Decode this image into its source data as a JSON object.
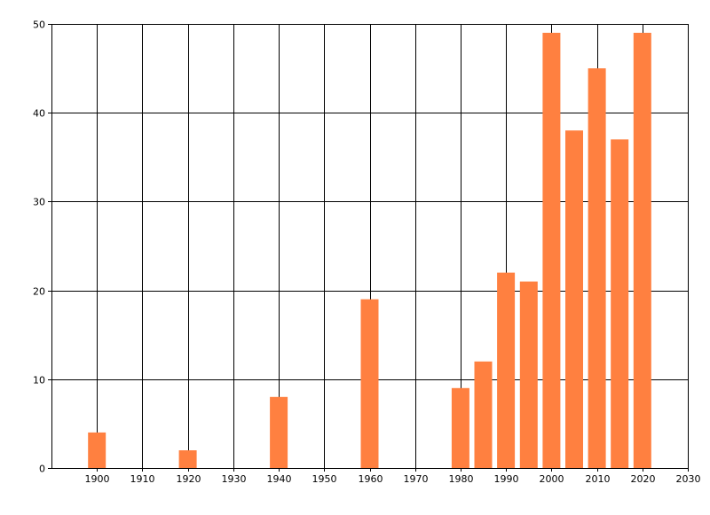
{
  "chart_data": {
    "type": "bar",
    "title": "",
    "xlabel": "",
    "ylabel": "",
    "x": [
      1900,
      1920,
      1940,
      1960,
      1980,
      1985,
      1990,
      1995,
      2000,
      2005,
      2010,
      2015,
      2020
    ],
    "values": [
      4,
      2,
      8,
      19,
      9,
      12,
      22,
      21,
      49,
      38,
      45,
      37,
      49
    ],
    "xlim": [
      1890,
      2030
    ],
    "ylim": [
      0,
      50
    ],
    "xticks": [
      1900,
      1910,
      1920,
      1930,
      1940,
      1950,
      1960,
      1970,
      1980,
      1990,
      2000,
      2010,
      2020,
      2030
    ],
    "yticks": [
      0,
      10,
      20,
      30,
      40,
      50
    ],
    "grid": true,
    "bar_color": "#FF8040",
    "grid_color": "#000000"
  }
}
